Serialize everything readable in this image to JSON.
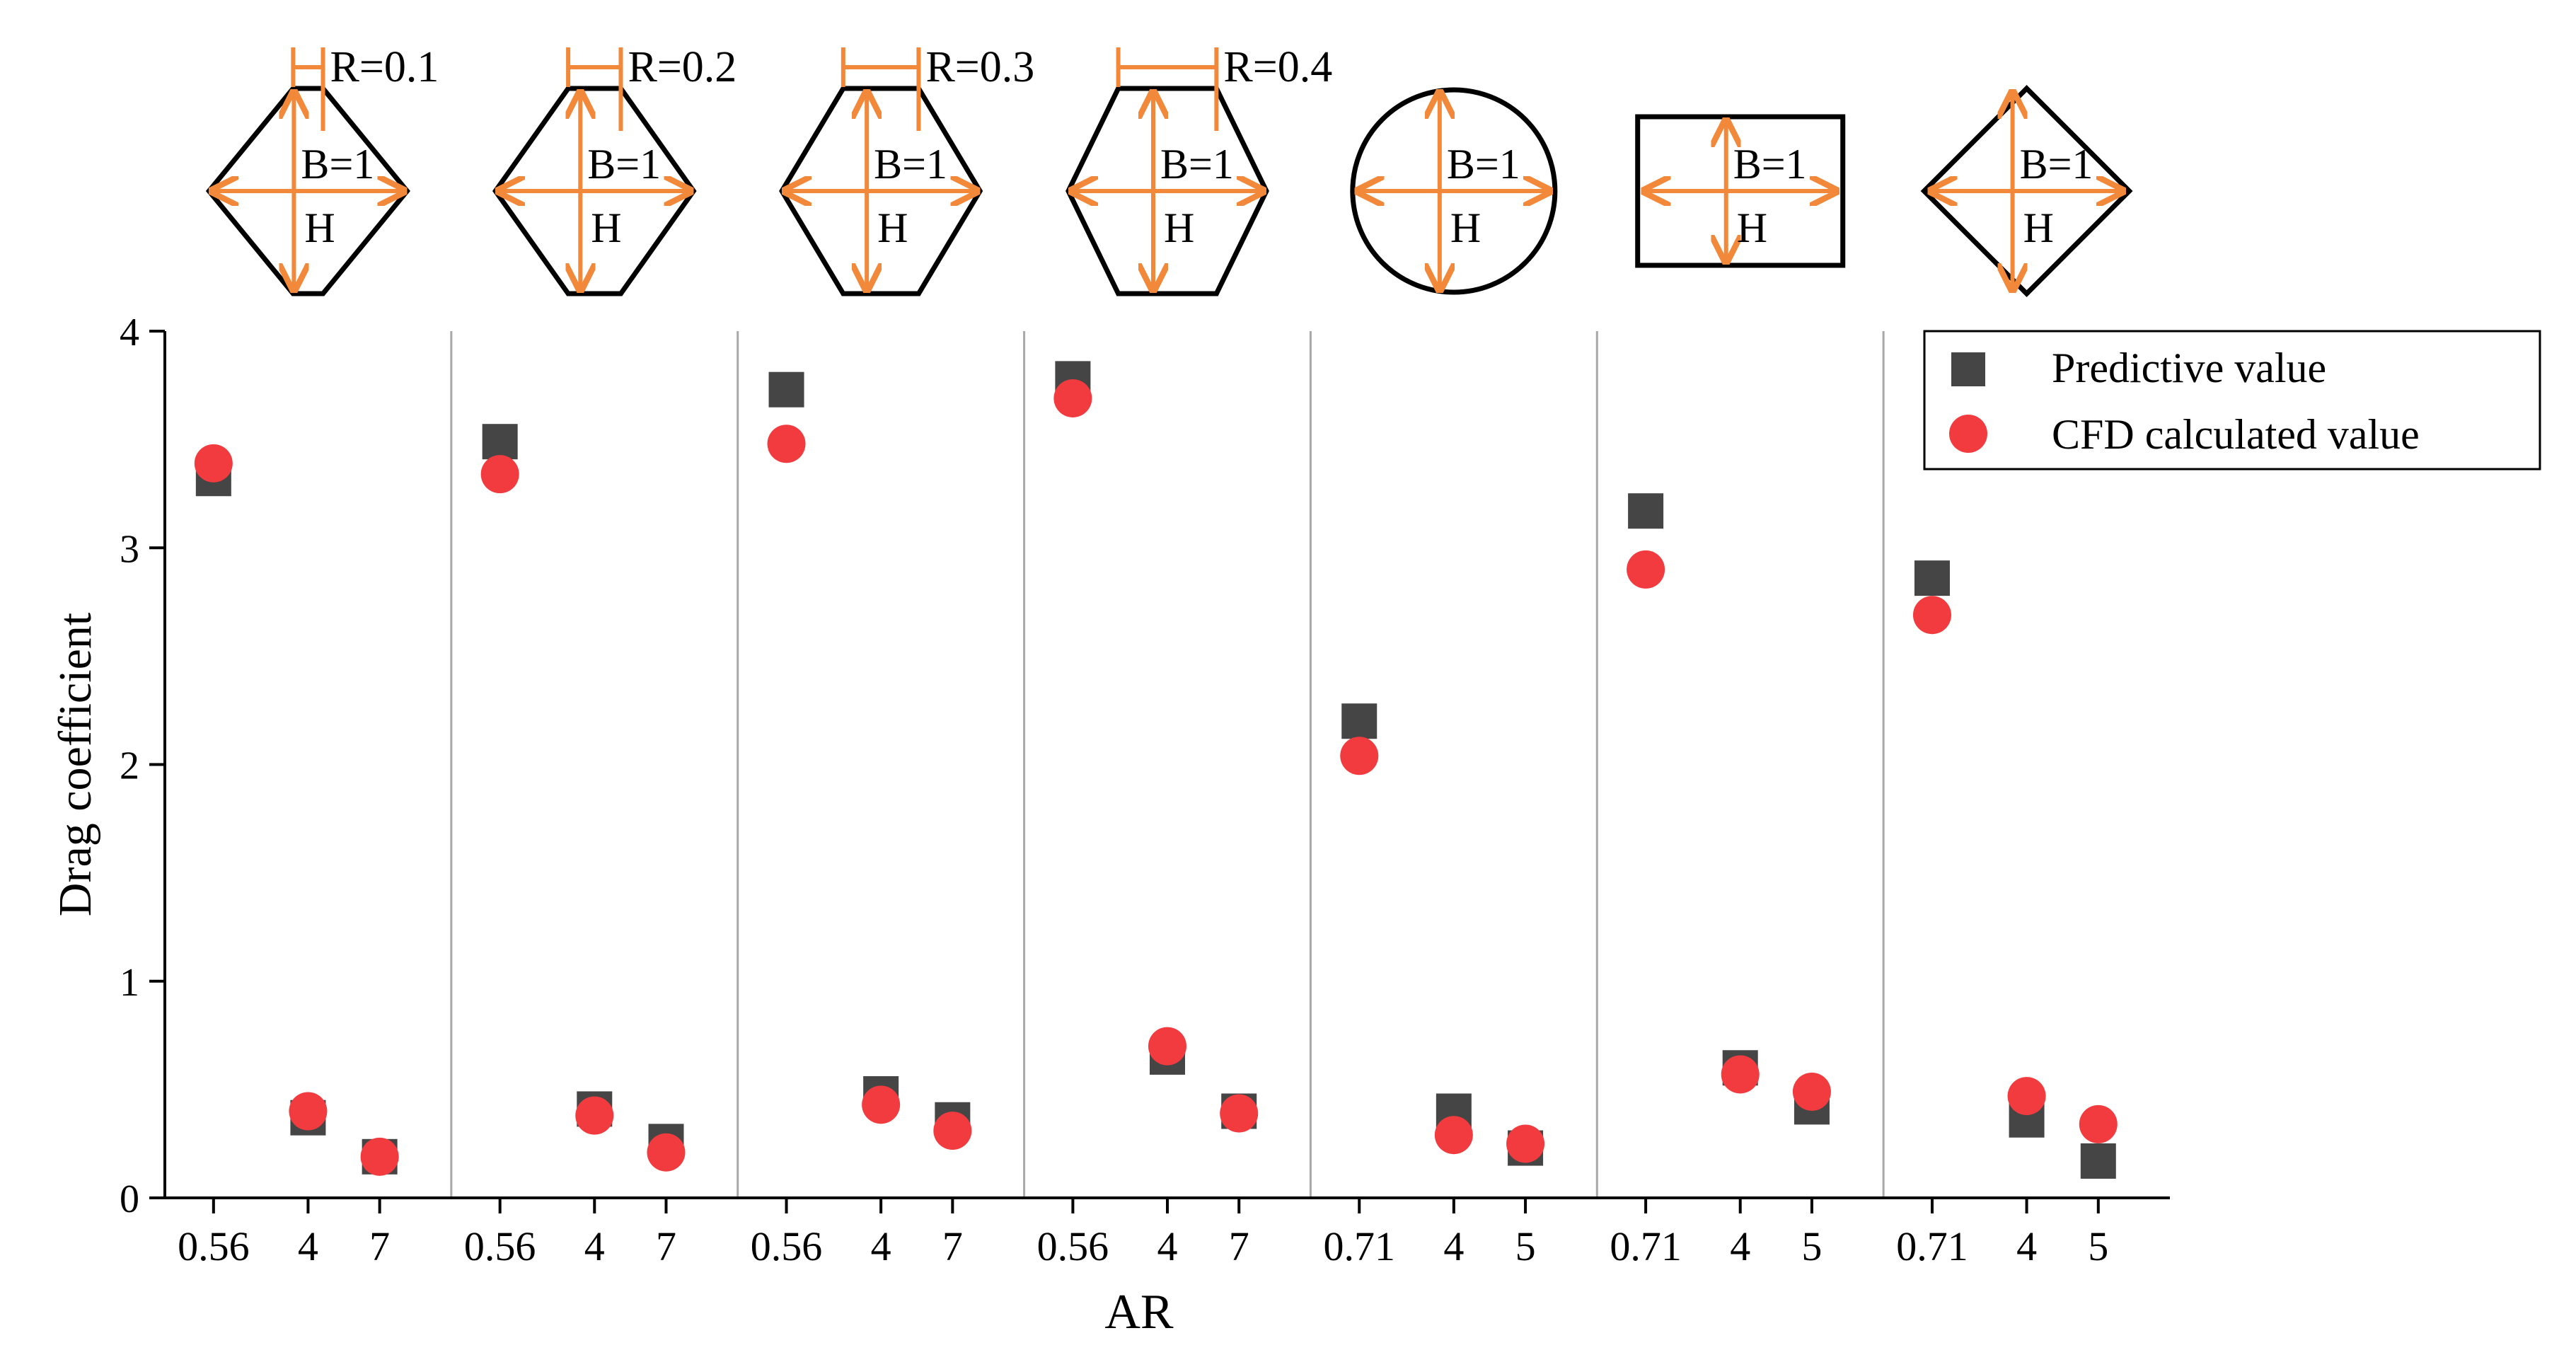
{
  "chart_data": {
    "type": "scatter",
    "xlabel": "AR",
    "ylabel": "Drag coefficient",
    "ylim": [
      0,
      4
    ],
    "yticks": [
      "0",
      "1",
      "2",
      "3",
      "4"
    ],
    "legend_position": "top-right",
    "series": [
      {
        "name": "Predictive value",
        "marker": "square",
        "color": "#454545"
      },
      {
        "name": "CFD calculated value",
        "marker": "circle",
        "color": "#f23b3f"
      }
    ],
    "groups": [
      {
        "shape": "hexagon",
        "r_label": "R=0.1",
        "b_label": "B=1",
        "h_label": "H",
        "categories": [
          "0.56",
          "4",
          "7"
        ],
        "predictive": [
          3.32,
          0.37,
          0.19
        ],
        "cfd": [
          3.39,
          0.4,
          0.19
        ]
      },
      {
        "shape": "hexagon",
        "r_label": "R=0.2",
        "b_label": "B=1",
        "h_label": "H",
        "categories": [
          "0.56",
          "4",
          "7"
        ],
        "predictive": [
          3.49,
          0.41,
          0.26
        ],
        "cfd": [
          3.34,
          0.38,
          0.21
        ]
      },
      {
        "shape": "hexagon",
        "r_label": "R=0.3",
        "b_label": "B=1",
        "h_label": "H",
        "categories": [
          "0.56",
          "4",
          "7"
        ],
        "predictive": [
          3.73,
          0.48,
          0.36
        ],
        "cfd": [
          3.48,
          0.43,
          0.31
        ]
      },
      {
        "shape": "hexagon",
        "r_label": "R=0.4",
        "b_label": "B=1",
        "h_label": "H",
        "categories": [
          "0.56",
          "4",
          "7"
        ],
        "predictive": [
          3.78,
          0.65,
          0.4
        ],
        "cfd": [
          3.69,
          0.7,
          0.39
        ]
      },
      {
        "shape": "circle",
        "r_label": "",
        "b_label": "B=1",
        "h_label": "H",
        "categories": [
          "0.71",
          "4",
          "5"
        ],
        "predictive": [
          2.2,
          0.4,
          0.23
        ],
        "cfd": [
          2.04,
          0.29,
          0.25
        ]
      },
      {
        "shape": "rectangle",
        "r_label": "",
        "b_label": "B=1",
        "h_label": "H",
        "categories": [
          "0.71",
          "4",
          "5"
        ],
        "predictive": [
          3.17,
          0.6,
          0.42
        ],
        "cfd": [
          2.9,
          0.57,
          0.49
        ]
      },
      {
        "shape": "diamond",
        "r_label": "",
        "b_label": "B=1",
        "h_label": "H",
        "categories": [
          "0.71",
          "4",
          "5"
        ],
        "predictive": [
          2.86,
          0.36,
          0.17
        ],
        "cfd": [
          2.69,
          0.47,
          0.34
        ]
      }
    ]
  }
}
